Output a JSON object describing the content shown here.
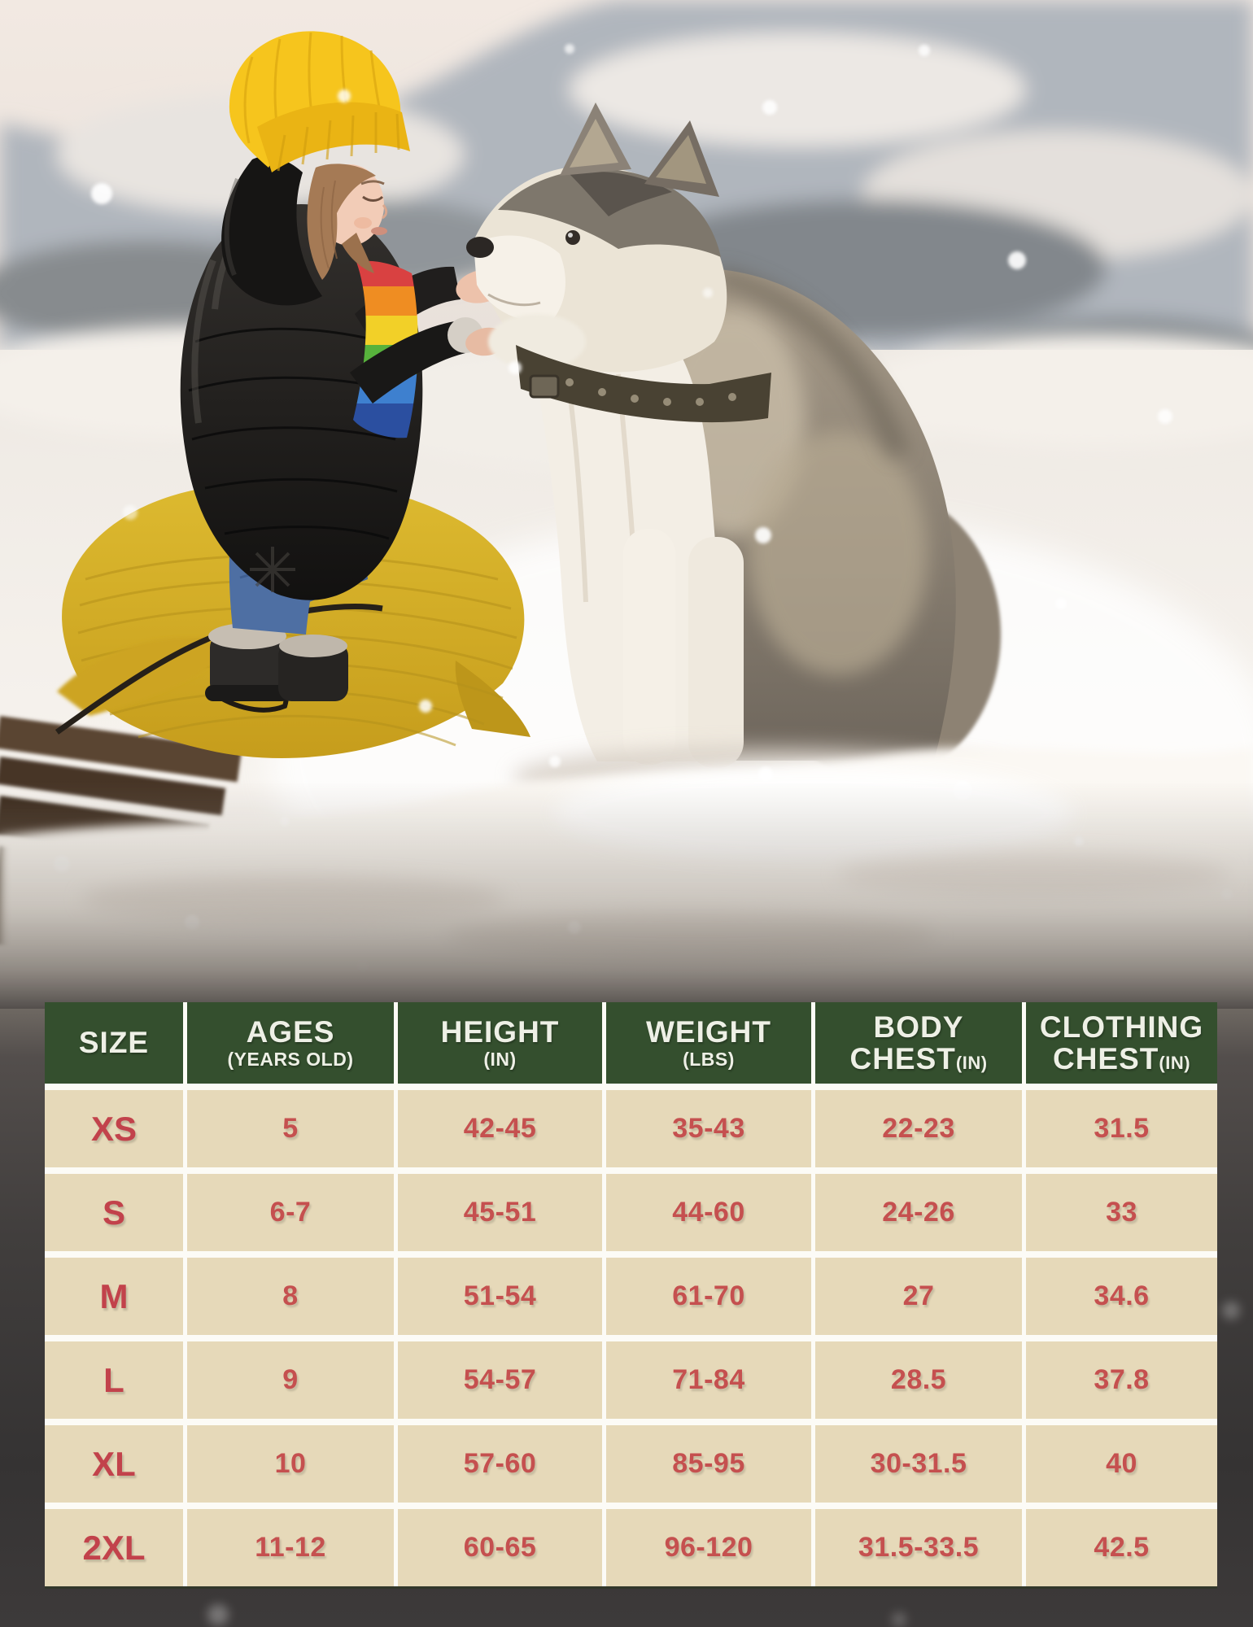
{
  "chart_data": {
    "type": "table",
    "columns": [
      "SIZE",
      "AGES (YEARS OLD)",
      "HEIGHT (IN)",
      "WEIGHT (LBS)",
      "BODY CHEST(IN)",
      "CLOTHING CHEST(IN)"
    ],
    "rows": [
      [
        "XS",
        "5",
        "42-45",
        "35-43",
        "22-23",
        "31.5"
      ],
      [
        "S",
        "6-7",
        "45-51",
        "44-60",
        "24-26",
        "33"
      ],
      [
        "M",
        "8",
        "51-54",
        "61-70",
        "27",
        "34.6"
      ],
      [
        "L",
        "9",
        "54-57",
        "71-84",
        "28.5",
        "37.8"
      ],
      [
        "XL",
        "10",
        "57-60",
        "85-95",
        "30-31.5",
        "40"
      ],
      [
        "2XL",
        "11-12",
        "60-65",
        "96-120",
        "31.5-33.5",
        "42.5"
      ]
    ]
  },
  "table": {
    "columns": [
      {
        "line1": "SIZE",
        "line2": "",
        "sub": ""
      },
      {
        "line1": "AGES",
        "line2": "",
        "sub": "(YEARS OLD)"
      },
      {
        "line1": "HEIGHT",
        "line2": "",
        "sub": "(IN)"
      },
      {
        "line1": "WEIGHT",
        "line2": "",
        "sub": "(LBS)"
      },
      {
        "line1": "BODY",
        "line2": "CHEST",
        "sub": "(IN)"
      },
      {
        "line1": "CLOTHING",
        "line2": "CHEST",
        "sub": "(IN)"
      }
    ],
    "rows": [
      {
        "size": "XS",
        "values": [
          "5",
          "42-45",
          "35-43",
          "22-23",
          "31.5"
        ]
      },
      {
        "size": "S",
        "values": [
          "6-7",
          "45-51",
          "44-60",
          "24-26",
          "33"
        ]
      },
      {
        "size": "M",
        "values": [
          "8",
          "51-54",
          "61-70",
          "27",
          "34.6"
        ]
      },
      {
        "size": "L",
        "values": [
          "9",
          "54-57",
          "71-84",
          "28.5",
          "37.8"
        ]
      },
      {
        "size": "XL",
        "values": [
          "10",
          "57-60",
          "85-95",
          "30-31.5",
          "40"
        ]
      },
      {
        "size": "2XL",
        "values": [
          "11-12",
          "60-65",
          "96-120",
          "31.5-33.5",
          "42.5"
        ]
      }
    ]
  },
  "colors": {
    "header_bg": "#344f2e",
    "header_text": "#eef0e6",
    "row_bg": "#e6d9b9",
    "size_text": "#c2424b",
    "value_text": "#c5504f",
    "grid_gap": "#fcfbf6"
  }
}
